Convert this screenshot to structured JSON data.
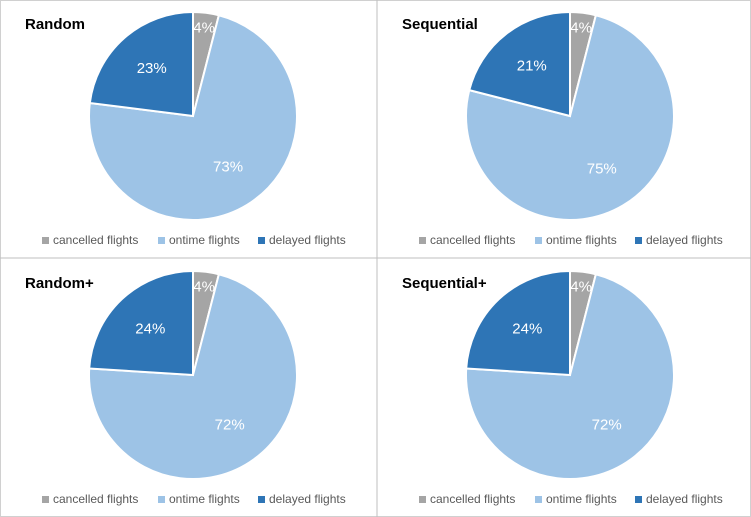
{
  "chart_data": [
    {
      "type": "pie",
      "title": "Random",
      "categories": [
        "cancelled flights",
        "ontime flights",
        "delayed flights"
      ],
      "values": [
        4,
        73,
        23
      ],
      "value_labels": [
        "4%",
        "73%",
        "23%"
      ],
      "colors": [
        "#a5a5a5",
        "#9dc3e6",
        "#2e75b6"
      ],
      "legend": "bottom"
    },
    {
      "type": "pie",
      "title": "Sequential",
      "categories": [
        "cancelled flights",
        "ontime flights",
        "delayed flights"
      ],
      "values": [
        4,
        75,
        21
      ],
      "value_labels": [
        "4%",
        "75%",
        "21%"
      ],
      "colors": [
        "#a5a5a5",
        "#9dc3e6",
        "#2e75b6"
      ],
      "legend": "bottom"
    },
    {
      "type": "pie",
      "title": "Random+",
      "categories": [
        "cancelled flights",
        "ontime flights",
        "delayed flights"
      ],
      "values": [
        4,
        72,
        24
      ],
      "value_labels": [
        "4%",
        "72%",
        "24%"
      ],
      "colors": [
        "#a5a5a5",
        "#9dc3e6",
        "#2e75b6"
      ],
      "legend": "bottom"
    },
    {
      "type": "pie",
      "title": "Sequential+",
      "categories": [
        "cancelled flights",
        "ontime flights",
        "delayed flights"
      ],
      "values": [
        4,
        72,
        24
      ],
      "value_labels": [
        "4%",
        "72%",
        "24%"
      ],
      "colors": [
        "#a5a5a5",
        "#9dc3e6",
        "#2e75b6"
      ],
      "legend": "bottom"
    }
  ]
}
